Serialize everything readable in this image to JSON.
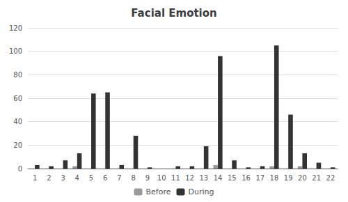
{
  "chart_data": {
    "type": "bar",
    "title": "Facial Emotion",
    "categories": [
      1,
      2,
      3,
      4,
      5,
      6,
      7,
      8,
      9,
      10,
      11,
      12,
      13,
      14,
      15,
      16,
      17,
      18,
      19,
      20,
      21,
      22
    ],
    "series": [
      {
        "name": "Before",
        "color": "#999999",
        "values": [
          0,
          0,
          0,
          2,
          0,
          0,
          0,
          0,
          0,
          0,
          0,
          0,
          0,
          3,
          0,
          0,
          0,
          2,
          0,
          2,
          0,
          0
        ]
      },
      {
        "name": "During",
        "color": "#333333",
        "values": [
          3,
          2,
          7,
          13,
          64,
          65,
          3,
          28,
          1,
          0,
          2,
          2,
          19,
          96,
          7,
          1,
          2,
          105,
          46,
          13,
          5,
          1
        ]
      }
    ],
    "ylim": [
      0,
      120
    ],
    "yticks": [
      0,
      20,
      40,
      60,
      80,
      100,
      120
    ],
    "grid": true,
    "legend": "bottom"
  }
}
